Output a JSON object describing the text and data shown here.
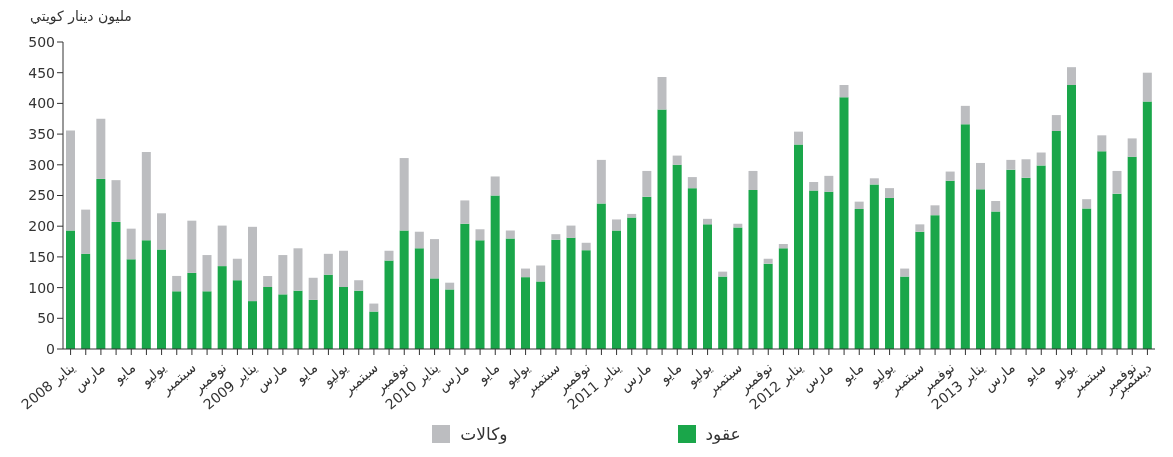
{
  "chart_data": {
    "type": "bar",
    "stacked": true,
    "ylabel": "مليون دينار كويتي",
    "categories": [
      "يناير 2008",
      null,
      "مارس",
      null,
      "مايو",
      null,
      "يوليو",
      null,
      "سبتمبر",
      null,
      "نوفمبر",
      null,
      "يناير 2009",
      null,
      "مارس",
      null,
      "مايو",
      null,
      "يوليو",
      null,
      "سبتمبر",
      null,
      "نوفمبر",
      null,
      "يناير 2010",
      null,
      "مارس",
      null,
      "مايو",
      null,
      "يوليو",
      null,
      "سبتمبر",
      null,
      "نوفمبر",
      null,
      "يناير 2011",
      null,
      "مارس",
      null,
      "مايو",
      null,
      "يوليو",
      null,
      "سبتمبر",
      null,
      "نوفمبر",
      null,
      "يناير 2012",
      null,
      "مارس",
      null,
      "مايو",
      null,
      "يوليو",
      null,
      "سبتمبر",
      null,
      "نوفمبر",
      null,
      "يناير 2013",
      null,
      "مارس",
      null,
      "مايو",
      null,
      "يوليو",
      null,
      "سبتمبر",
      null,
      "نوفمبر",
      "ديسمبر"
    ],
    "series": [
      {
        "name": "عقود",
        "color": "#1aa64a",
        "values": [
          193,
          155,
          277,
          207,
          146,
          177,
          162,
          94,
          124,
          94,
          135,
          112,
          78,
          101,
          89,
          95,
          80,
          121,
          101,
          95,
          61,
          144,
          193,
          164,
          115,
          97,
          204,
          177,
          250,
          180,
          117,
          110,
          178,
          181,
          161,
          237,
          193,
          214,
          248,
          390,
          300,
          262,
          203,
          118,
          198,
          259,
          139,
          164,
          333,
          258,
          256,
          410,
          228,
          268,
          246,
          118,
          191,
          218,
          274,
          366,
          260,
          224,
          292,
          279,
          299,
          355,
          430,
          229,
          322,
          253,
          313,
          403
        ]
      },
      {
        "name": "وكالات",
        "color": "#bcbdc0",
        "values": [
          163,
          72,
          98,
          68,
          50,
          144,
          59,
          25,
          85,
          59,
          66,
          35,
          121,
          18,
          64,
          69,
          36,
          34,
          59,
          17,
          13,
          16,
          118,
          27,
          64,
          11,
          38,
          18,
          31,
          13,
          14,
          26,
          9,
          20,
          12,
          71,
          18,
          6,
          42,
          53,
          15,
          18,
          9,
          8,
          6,
          31,
          8,
          7,
          21,
          14,
          26,
          20,
          12,
          10,
          16,
          13,
          12,
          16,
          15,
          30,
          43,
          17,
          16,
          30,
          21,
          26,
          29,
          15,
          26,
          37,
          30,
          47
        ]
      }
    ],
    "ylim": [
      0,
      500
    ],
    "yticks": [
      0,
      50,
      100,
      150,
      200,
      250,
      300,
      350,
      400,
      450,
      500
    ],
    "grid": false,
    "legend": "bottom"
  }
}
